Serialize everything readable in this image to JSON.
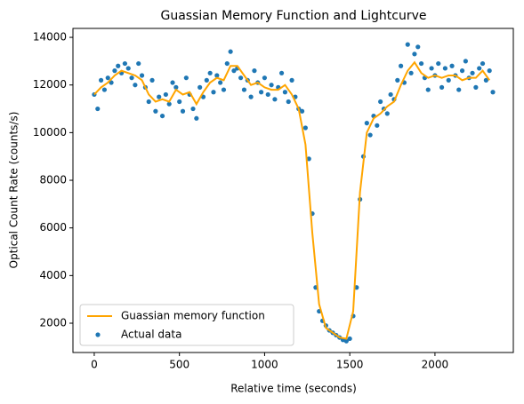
{
  "chart_data": {
    "type": "line",
    "title": "Guassian Memory Function and Lightcurve",
    "x_label": "Relative time (seconds)",
    "y_label": "Optical Count Rate (counts/s)",
    "xlim": [
      -125,
      2460
    ],
    "ylim": [
      770,
      14375
    ],
    "xticks": [
      0,
      500,
      1000,
      1500,
      2000
    ],
    "yticks": [
      2000,
      4000,
      6000,
      8000,
      10000,
      12000,
      14000
    ],
    "legend": "lower left",
    "grid": false,
    "series": [
      {
        "name": "Guassian memory function",
        "type": "line",
        "color": "#ffa500",
        "x": [
          0,
          40,
          80,
          120,
          160,
          200,
          240,
          280,
          320,
          360,
          400,
          440,
          480,
          520,
          560,
          600,
          640,
          680,
          720,
          760,
          800,
          840,
          880,
          920,
          960,
          1000,
          1040,
          1080,
          1120,
          1160,
          1200,
          1240,
          1280,
          1320,
          1360,
          1400,
          1440,
          1480,
          1520,
          1560,
          1600,
          1640,
          1680,
          1720,
          1760,
          1800,
          1840,
          1880,
          1920,
          1960,
          2000,
          2040,
          2080,
          2120,
          2160,
          2200,
          2240,
          2280,
          2320
        ],
        "values": [
          11600,
          11900,
          12100,
          12400,
          12600,
          12500,
          12400,
          12200,
          11600,
          11300,
          11400,
          11300,
          11800,
          11600,
          11700,
          11200,
          11700,
          12100,
          12300,
          12200,
          12800,
          12800,
          12400,
          12000,
          12100,
          11900,
          11800,
          11800,
          12000,
          11600,
          11000,
          9500,
          5800,
          2800,
          1800,
          1600,
          1400,
          1350,
          2500,
          7500,
          10000,
          10600,
          10800,
          11100,
          11300,
          12000,
          12600,
          12950,
          12500,
          12300,
          12400,
          12300,
          12400,
          12400,
          12200,
          12300,
          12300,
          12600,
          12200
        ]
      },
      {
        "name": "Actual data",
        "type": "scatter",
        "color": "#1f77b4",
        "x": [
          0,
          20,
          40,
          60,
          80,
          100,
          120,
          140,
          160,
          180,
          200,
          220,
          240,
          260,
          280,
          300,
          320,
          340,
          360,
          380,
          400,
          420,
          440,
          460,
          480,
          500,
          520,
          540,
          560,
          580,
          600,
          620,
          640,
          660,
          680,
          700,
          720,
          740,
          760,
          780,
          800,
          820,
          840,
          860,
          880,
          900,
          920,
          940,
          960,
          980,
          1000,
          1020,
          1040,
          1060,
          1080,
          1100,
          1120,
          1140,
          1160,
          1180,
          1200,
          1220,
          1240,
          1260,
          1280,
          1300,
          1320,
          1340,
          1360,
          1380,
          1400,
          1420,
          1440,
          1460,
          1480,
          1500,
          1520,
          1540,
          1560,
          1580,
          1600,
          1620,
          1640,
          1660,
          1680,
          1700,
          1720,
          1740,
          1760,
          1780,
          1800,
          1820,
          1840,
          1860,
          1880,
          1900,
          1920,
          1940,
          1960,
          1980,
          2000,
          2020,
          2040,
          2060,
          2080,
          2100,
          2120,
          2140,
          2160,
          2180,
          2200,
          2220,
          2240,
          2260,
          2280,
          2300,
          2320,
          2340
        ],
        "values": [
          11600,
          11000,
          12200,
          11800,
          12300,
          12100,
          12600,
          12800,
          12500,
          12900,
          12700,
          12300,
          12000,
          12900,
          12400,
          11900,
          11300,
          12200,
          10900,
          11500,
          10700,
          11600,
          11200,
          12100,
          11900,
          11300,
          10900,
          12300,
          11600,
          11000,
          10600,
          11900,
          11500,
          12200,
          12500,
          11700,
          12400,
          12100,
          11800,
          12900,
          13400,
          12600,
          12700,
          12300,
          11800,
          12200,
          11500,
          12600,
          12100,
          11700,
          12300,
          11600,
          12000,
          11400,
          11900,
          12500,
          11700,
          11300,
          12200,
          11500,
          11000,
          10900,
          10200,
          8900,
          6600,
          3500,
          2500,
          2100,
          1900,
          1700,
          1600,
          1500,
          1400,
          1300,
          1250,
          1350,
          2300,
          3500,
          7200,
          9000,
          10400,
          9900,
          10700,
          10300,
          11300,
          11000,
          10800,
          11600,
          11400,
          12200,
          12800,
          12100,
          13700,
          12500,
          13300,
          13600,
          12900,
          12300,
          11800,
          12700,
          12400,
          12900,
          11900,
          12700,
          12200,
          12800,
          12400,
          11800,
          12600,
          13000,
          12300,
          12500,
          11900,
          12700,
          12900,
          12200,
          12600,
          11700
        ]
      }
    ]
  }
}
